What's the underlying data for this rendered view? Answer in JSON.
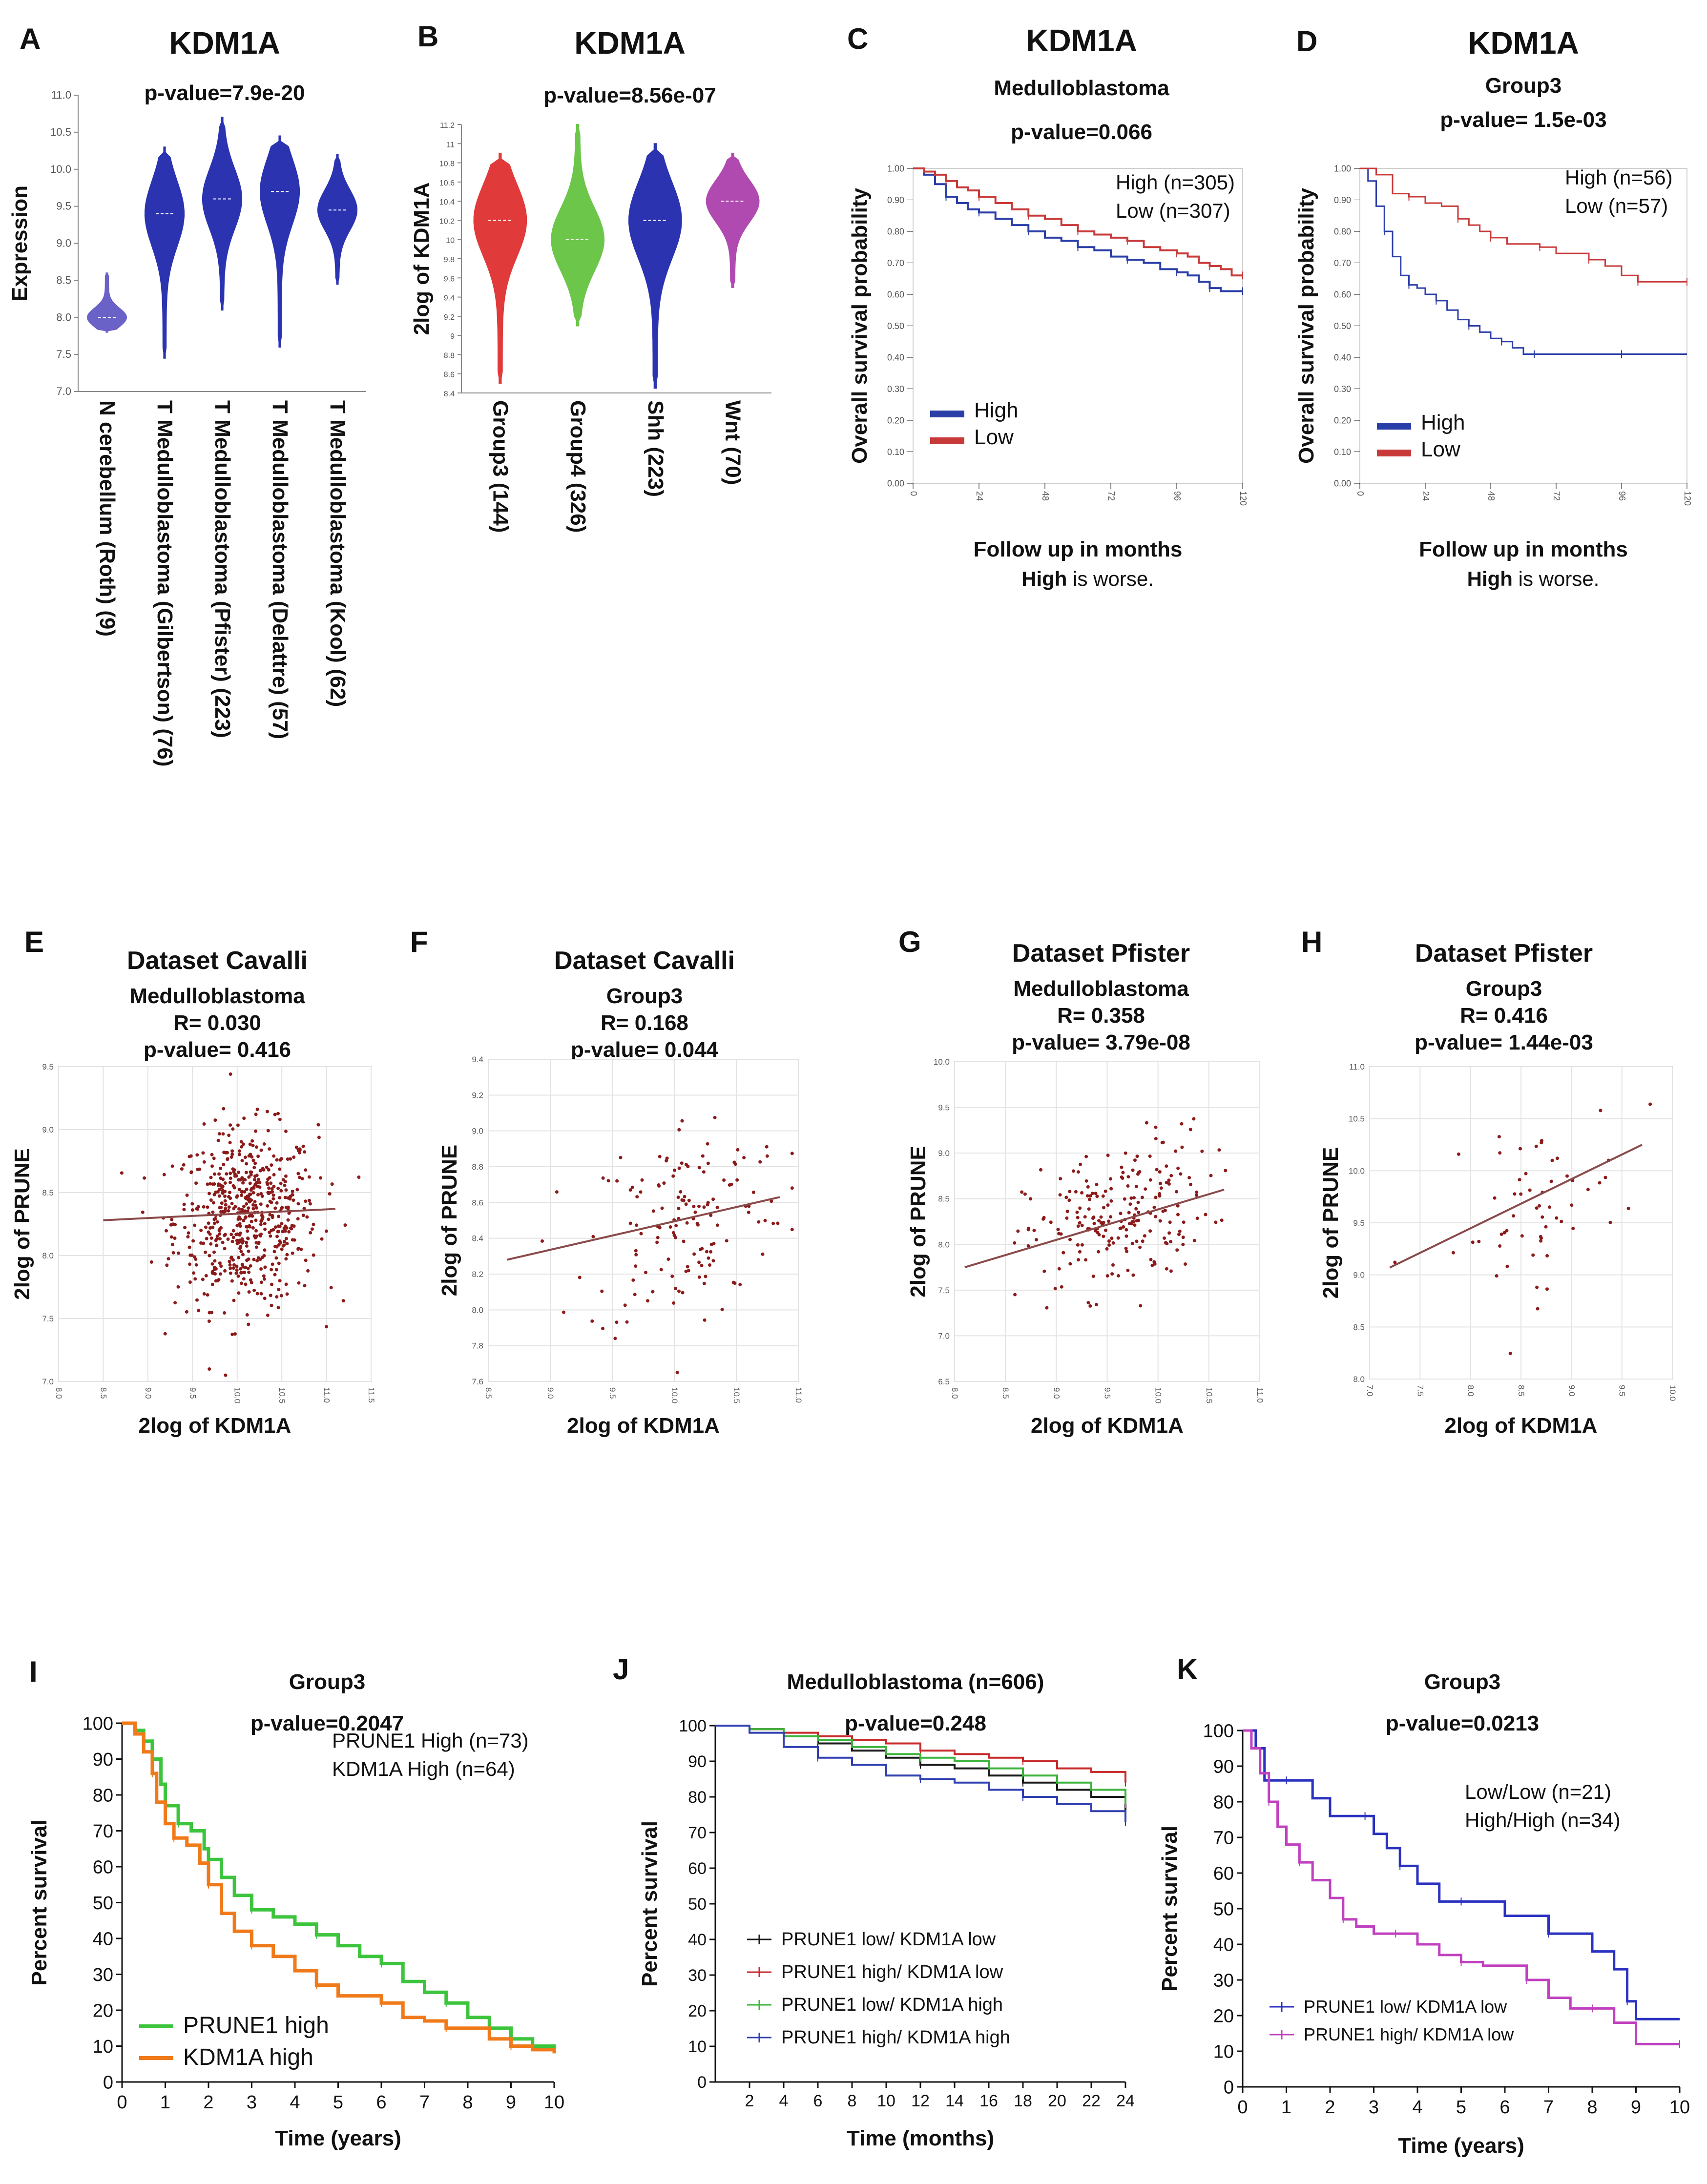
{
  "chart_data": [
    {
      "panel": "A",
      "type": "violin",
      "title": "KDM1A",
      "subtitle": "p-value=7.9e-20",
      "ylabel": "Expression",
      "ylim": [
        7.0,
        11.0
      ],
      "yticks": [
        "7.0",
        "7.5",
        "8.0",
        "8.5",
        "9.0",
        "9.5",
        "10.0",
        "10.5",
        "11.0"
      ],
      "groups": [
        {
          "label": "N cerebellum (Roth) (9)",
          "min": 7.8,
          "max": 8.6,
          "median": 8.0,
          "color": "#6b62c8"
        },
        {
          "label": "T Medulloblastoma (Gilbertson) (76)",
          "min": 7.45,
          "max": 10.3,
          "median": 9.4,
          "color": "#2b33b0"
        },
        {
          "label": "T Medulloblastoma (Pfister) (223)",
          "min": 8.1,
          "max": 10.7,
          "median": 9.6,
          "color": "#2b33b0"
        },
        {
          "label": "T Medulloblastoma (Delattre) (57)",
          "min": 7.6,
          "max": 10.45,
          "median": 9.7,
          "color": "#2b33b0"
        },
        {
          "label": "T Medulloblastoma (Kool) (62)",
          "min": 8.45,
          "max": 10.2,
          "median": 9.45,
          "color": "#2b33b0"
        }
      ]
    },
    {
      "panel": "B",
      "type": "violin",
      "title": "KDM1A",
      "subtitle": "p-value=8.56e-07",
      "ylabel": "2log of KDM1A",
      "ylim": [
        8.4,
        11.2
      ],
      "yticks": [
        "8.4",
        "8.6",
        "8.8",
        "9",
        "9.2",
        "9.4",
        "9.6",
        "9.8",
        "10",
        "10.2",
        "10.4",
        "10.6",
        "10.8",
        "11",
        "11.2"
      ],
      "groups": [
        {
          "label": "Group3 (144)",
          "min": 8.5,
          "max": 10.9,
          "median": 10.2,
          "color": "#e03a3a"
        },
        {
          "label": "Group4 (326)",
          "min": 9.1,
          "max": 11.2,
          "median": 10.0,
          "color": "#6cc64a"
        },
        {
          "label": "Shh (223)",
          "min": 8.45,
          "max": 11.0,
          "median": 10.2,
          "color": "#2b33b0"
        },
        {
          "label": "Wnt (70)",
          "min": 9.5,
          "max": 10.9,
          "median": 10.4,
          "color": "#b04ab0"
        }
      ]
    },
    {
      "panel": "C",
      "type": "line",
      "title": "KDM1A",
      "subtitle": "Medulloblastoma",
      "pvalue": "p-value=0.066",
      "ylabel": "Overall survival probability",
      "xlabel": "Follow up in months",
      "note_bold": "High",
      "note_rest": " is worse.",
      "xlim": [
        0,
        120
      ],
      "ylim": [
        0,
        1
      ],
      "xticks": [
        "0",
        "24",
        "48",
        "72",
        "96",
        "120"
      ],
      "yticks": [
        "0.00",
        "0.10",
        "0.20",
        "0.30",
        "0.40",
        "0.50",
        "0.60",
        "0.70",
        "0.80",
        "0.90",
        "1.00"
      ],
      "ann1": "High (n=305)",
      "ann2": "Low (n=307)",
      "series": [
        {
          "name": "High",
          "color": "#2a3ea8",
          "x": [
            0,
            4,
            8,
            12,
            16,
            20,
            24,
            30,
            36,
            42,
            48,
            54,
            60,
            66,
            72,
            78,
            84,
            90,
            96,
            100,
            104,
            108,
            112,
            116,
            120
          ],
          "y": [
            1.0,
            0.98,
            0.95,
            0.91,
            0.89,
            0.87,
            0.86,
            0.84,
            0.82,
            0.8,
            0.78,
            0.77,
            0.75,
            0.74,
            0.72,
            0.71,
            0.7,
            0.68,
            0.67,
            0.66,
            0.64,
            0.62,
            0.61,
            0.61,
            0.61
          ]
        },
        {
          "name": "Low",
          "color": "#c83a3a",
          "x": [
            0,
            4,
            8,
            12,
            16,
            20,
            24,
            30,
            36,
            42,
            48,
            54,
            60,
            66,
            72,
            78,
            84,
            90,
            96,
            100,
            104,
            108,
            112,
            116,
            120
          ],
          "y": [
            1.0,
            0.99,
            0.98,
            0.96,
            0.94,
            0.93,
            0.91,
            0.89,
            0.87,
            0.85,
            0.84,
            0.82,
            0.8,
            0.79,
            0.78,
            0.77,
            0.75,
            0.74,
            0.73,
            0.72,
            0.7,
            0.69,
            0.68,
            0.66,
            0.66
          ]
        }
      ]
    },
    {
      "panel": "D",
      "type": "line",
      "title": "KDM1A",
      "subtitle": "Group3",
      "pvalue": "p-value= 1.5e-03",
      "ylabel": "Overall survival probability",
      "xlabel": "Follow up in months",
      "note_bold": "High",
      "note_rest": " is worse.",
      "xlim": [
        0,
        120
      ],
      "ylim": [
        0,
        1
      ],
      "xticks": [
        "0",
        "24",
        "48",
        "72",
        "96",
        "120"
      ],
      "yticks": [
        "0.00",
        "0.10",
        "0.20",
        "0.30",
        "0.40",
        "0.50",
        "0.60",
        "0.70",
        "0.80",
        "0.90",
        "1.00"
      ],
      "ann1": "High (n=56)",
      "ann2": "Low (n=57)",
      "series": [
        {
          "name": "High",
          "color": "#2a3ea8",
          "x": [
            0,
            3,
            6,
            9,
            12,
            15,
            18,
            21,
            24,
            28,
            32,
            36,
            40,
            44,
            48,
            52,
            56,
            60,
            64,
            72,
            84,
            96,
            108,
            120
          ],
          "y": [
            1.0,
            0.96,
            0.88,
            0.8,
            0.72,
            0.66,
            0.63,
            0.62,
            0.6,
            0.58,
            0.55,
            0.52,
            0.5,
            0.48,
            0.46,
            0.45,
            0.43,
            0.41,
            0.41,
            0.41,
            0.41,
            0.41,
            0.41,
            0.41
          ]
        },
        {
          "name": "Low",
          "color": "#c83a3a",
          "x": [
            0,
            6,
            12,
            18,
            24,
            30,
            36,
            40,
            44,
            48,
            54,
            60,
            66,
            72,
            78,
            84,
            90,
            96,
            102,
            108,
            114,
            120
          ],
          "y": [
            1.0,
            0.98,
            0.92,
            0.91,
            0.89,
            0.88,
            0.84,
            0.82,
            0.8,
            0.78,
            0.76,
            0.76,
            0.75,
            0.73,
            0.73,
            0.71,
            0.69,
            0.66,
            0.64,
            0.64,
            0.64,
            0.64
          ]
        }
      ]
    },
    {
      "panel": "E",
      "type": "scatter",
      "title": "Dataset Cavalli",
      "subtitle": "Medulloblastoma",
      "r": "R= 0.030",
      "pvalue": "p-value= 0.416",
      "xlabel": "2log of KDM1A",
      "ylabel": "2log of PRUNE",
      "xlim": [
        8.0,
        11.5
      ],
      "ylim": [
        7.0,
        9.5
      ],
      "xticks": [
        "8.0",
        "8.5",
        "9.0",
        "9.5",
        "10.0",
        "10.5",
        "11.0",
        "11.5"
      ],
      "yticks": [
        "7.0",
        "7.5",
        "8.0",
        "8.5",
        "9.0",
        "9.5"
      ],
      "n_points": 600,
      "x_mean": 10.1,
      "x_sd": 0.4,
      "y_mean": 8.3,
      "y_sd": 0.35,
      "fit": {
        "x": [
          8.5,
          11.1
        ],
        "y": [
          8.28,
          8.37
        ]
      }
    },
    {
      "panel": "F",
      "type": "scatter",
      "title": "Dataset Cavalli",
      "subtitle": "Group3",
      "r": "R= 0.168",
      "pvalue": "p-value= 0.044",
      "xlabel": "2log of KDM1A",
      "ylabel": "2log of PRUNE",
      "xlim": [
        8.5,
        11.0
      ],
      "ylim": [
        7.6,
        9.4
      ],
      "xticks": [
        "8.5",
        "9.0",
        "9.5",
        "10.0",
        "10.5",
        "11.0"
      ],
      "yticks": [
        "7.6",
        "7.8",
        "8.0",
        "8.2",
        "8.4",
        "8.6",
        "8.8",
        "9.0",
        "9.2",
        "9.4"
      ],
      "n_points": 144,
      "x_mean": 10.1,
      "x_sd": 0.4,
      "y_mean": 8.5,
      "y_sd": 0.3,
      "fit": {
        "x": [
          8.65,
          10.85
        ],
        "y": [
          8.28,
          8.63
        ]
      }
    },
    {
      "panel": "G",
      "type": "scatter",
      "title": "Dataset Pfister",
      "subtitle": "Medulloblastoma",
      "r": "R= 0.358",
      "pvalue": "p-value= 3.79e-08",
      "xlabel": "2log of KDM1A",
      "ylabel": "2log of PRUNE",
      "xlim": [
        8.0,
        11.0
      ],
      "ylim": [
        6.5,
        10.0
      ],
      "xticks": [
        "8.0",
        "8.5",
        "9.0",
        "9.5",
        "10.0",
        "10.5",
        "11.0"
      ],
      "yticks": [
        "6.5",
        "7.0",
        "7.5",
        "8.0",
        "8.5",
        "9.0",
        "9.5",
        "10.0"
      ],
      "n_points": 223,
      "x_mean": 9.6,
      "x_sd": 0.45,
      "y_mean": 8.3,
      "y_sd": 0.4,
      "fit": {
        "x": [
          8.1,
          10.65
        ],
        "y": [
          7.75,
          8.6
        ]
      }
    },
    {
      "panel": "H",
      "type": "scatter",
      "title": "Dataset Pfister",
      "subtitle": "Group3",
      "r": "R= 0.416",
      "pvalue": "p-value= 1.44e-03",
      "xlabel": "2log of KDM1A",
      "ylabel": "2log of PRUNE",
      "xlim": [
        7.0,
        10.0
      ],
      "ylim": [
        8.0,
        11.0
      ],
      "xticks": [
        "7.0",
        "7.5",
        "8.0",
        "8.5",
        "9.0",
        "9.5",
        "10.0"
      ],
      "yticks": [
        "8.0",
        "8.5",
        "9.0",
        "9.5",
        "10.0",
        "10.5",
        "11.0"
      ],
      "n_points": 57,
      "x_mean": 8.6,
      "x_sd": 0.45,
      "y_mean": 9.6,
      "y_sd": 0.4,
      "fit": {
        "x": [
          7.2,
          9.7
        ],
        "y": [
          9.07,
          10.25
        ]
      }
    },
    {
      "panel": "I",
      "type": "line",
      "title": "Group3",
      "pvalue": "p-value=0.2047",
      "xlabel": "Time (years)",
      "ylabel": "Percent survival",
      "xlim": [
        0,
        10
      ],
      "ylim": [
        0,
        100
      ],
      "xticks": [
        "0",
        "1",
        "2",
        "3",
        "4",
        "5",
        "6",
        "7",
        "8",
        "9",
        "10"
      ],
      "yticks": [
        "0",
        "10",
        "20",
        "30",
        "40",
        "50",
        "60",
        "70",
        "80",
        "90",
        "100"
      ],
      "ann1": "PRUNE1 High (n=73)",
      "ann2": "KDM1A High (n=64)",
      "series": [
        {
          "name": "PRUNE1 high",
          "color": "#3cc43c",
          "x": [
            0,
            0.3,
            0.5,
            0.7,
            0.9,
            1.0,
            1.3,
            1.6,
            1.9,
            2.0,
            2.3,
            2.6,
            3.0,
            3.5,
            4.0,
            4.5,
            5.0,
            5.5,
            6.0,
            6.5,
            7.0,
            7.5,
            8.0,
            8.5,
            9.0,
            9.5,
            10.0
          ],
          "y": [
            100,
            98,
            95,
            90,
            83,
            77,
            72,
            70,
            65,
            62,
            57,
            52,
            48,
            46,
            44,
            41,
            38,
            35,
            33,
            28,
            25,
            22,
            18,
            15,
            12,
            10,
            8
          ]
        },
        {
          "name": "KDM1A high",
          "color": "#f07a1a",
          "x": [
            0,
            0.3,
            0.5,
            0.7,
            0.8,
            1.0,
            1.2,
            1.5,
            1.8,
            2.0,
            2.3,
            2.6,
            3.0,
            3.5,
            4.0,
            4.5,
            5.0,
            5.5,
            6.0,
            6.5,
            7.0,
            7.5,
            8.0,
            8.5,
            9.0,
            9.5,
            10.0
          ],
          "y": [
            100,
            97,
            92,
            86,
            78,
            72,
            68,
            66,
            61,
            55,
            47,
            42,
            38,
            35,
            31,
            27,
            24,
            24,
            22,
            18,
            17,
            15,
            15,
            12,
            10,
            9,
            8
          ]
        }
      ]
    },
    {
      "panel": "J",
      "type": "line",
      "title": "Medulloblastoma (n=606)",
      "pvalue": "p-value=0.248",
      "xlabel": "Time (months)",
      "ylabel": "Percent survival",
      "xlim": [
        0,
        24
      ],
      "ylim": [
        0,
        100
      ],
      "xticks": [
        "2",
        "4",
        "6",
        "8",
        "10",
        "12",
        "14",
        "16",
        "18",
        "20",
        "22",
        "24"
      ],
      "yticks": [
        "0",
        "10",
        "20",
        "30",
        "40",
        "50",
        "60",
        "70",
        "80",
        "90",
        "100"
      ],
      "series": [
        {
          "name": "PRUNE1 low/ KDM1A low",
          "color": "#1a1a1a",
          "x": [
            0,
            2,
            4,
            6,
            8,
            10,
            12,
            14,
            16,
            18,
            20,
            22,
            24
          ],
          "y": [
            100,
            99,
            97,
            95,
            93,
            91,
            89,
            88,
            86,
            84,
            82,
            80,
            76
          ]
        },
        {
          "name": "PRUNE1 high/ KDM1A low",
          "color": "#c82a2a",
          "x": [
            0,
            2,
            4,
            6,
            8,
            10,
            12,
            14,
            16,
            18,
            20,
            22,
            24
          ],
          "y": [
            100,
            99,
            98,
            97,
            96,
            95,
            93,
            92,
            91,
            90,
            88,
            87,
            84
          ]
        },
        {
          "name": "PRUNE1 low/ KDM1A high",
          "color": "#3cb43c",
          "x": [
            0,
            2,
            4,
            6,
            8,
            10,
            12,
            14,
            16,
            18,
            20,
            22,
            24
          ],
          "y": [
            100,
            99,
            97,
            96,
            94,
            92,
            91,
            90,
            88,
            86,
            84,
            82,
            78
          ]
        },
        {
          "name": "PRUNE1 high/ KDM1A high",
          "color": "#3040b0",
          "x": [
            0,
            2,
            4,
            6,
            8,
            10,
            12,
            14,
            16,
            18,
            20,
            22,
            24
          ],
          "y": [
            100,
            98,
            94,
            91,
            89,
            86,
            85,
            84,
            82,
            80,
            78,
            76,
            73
          ]
        }
      ]
    },
    {
      "panel": "K",
      "type": "line",
      "title": "Group3",
      "pvalue": "p-value=0.0213",
      "xlabel": "Time (years)",
      "ylabel": "Percent survival",
      "xlim": [
        0,
        10
      ],
      "ylim": [
        0,
        100
      ],
      "xticks": [
        "0",
        "1",
        "2",
        "3",
        "4",
        "5",
        "6",
        "7",
        "8",
        "9",
        "10"
      ],
      "yticks": [
        "0",
        "10",
        "20",
        "30",
        "40",
        "50",
        "60",
        "70",
        "80",
        "90",
        "100"
      ],
      "ann1": "Low/Low (n=21)",
      "ann2": "High/High (n=34)",
      "series": [
        {
          "name": "PRUNE1 low/ KDM1A low",
          "color": "#2a30c0",
          "x": [
            0,
            0.3,
            0.5,
            1.0,
            1.6,
            2.0,
            2.8,
            3.0,
            3.3,
            3.6,
            4.0,
            4.5,
            5.0,
            6.0,
            6.5,
            7.0,
            8.0,
            8.5,
            8.8,
            9.0,
            10.0
          ],
          "y": [
            100,
            95,
            86,
            86,
            81,
            76,
            76,
            71,
            67,
            62,
            57,
            52,
            52,
            48,
            48,
            43,
            38,
            33,
            24,
            19,
            19
          ]
        },
        {
          "name": "PRUNE1 high/ KDM1A low",
          "color": "#c040c0",
          "x": [
            0,
            0.2,
            0.4,
            0.6,
            0.8,
            1.0,
            1.3,
            1.6,
            2.0,
            2.3,
            2.6,
            3.0,
            3.5,
            4.0,
            4.5,
            5.0,
            5.5,
            6.0,
            6.5,
            7.0,
            7.5,
            8.0,
            8.5,
            9.0,
            10.0
          ],
          "y": [
            100,
            95,
            88,
            80,
            73,
            68,
            63,
            58,
            53,
            47,
            45,
            43,
            43,
            40,
            37,
            35,
            34,
            34,
            30,
            25,
            22,
            22,
            18,
            12,
            12
          ]
        }
      ]
    }
  ]
}
